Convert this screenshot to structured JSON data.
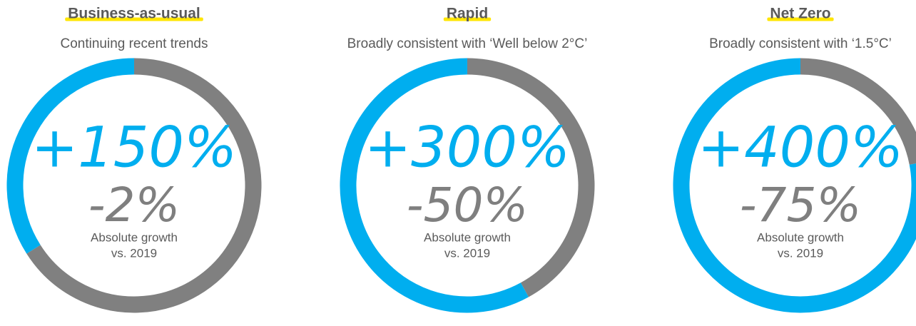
{
  "chart_data": [
    {
      "type": "pie",
      "title": "Business-as-usual",
      "subtitle": "Continuing recent trends",
      "values": [
        66,
        34
      ],
      "colors": [
        "#808080",
        "#00aeef"
      ],
      "annotations": [
        "+150%",
        "-2%",
        "Absolute growth",
        "vs. 2019"
      ]
    },
    {
      "type": "pie",
      "title": "Rapid",
      "subtitle": "Broadly consistent with ‘Well below 2°C’",
      "values": [
        42,
        58
      ],
      "colors": [
        "#808080",
        "#00aeef"
      ],
      "annotations": [
        "+300%",
        "-50%",
        "Absolute growth",
        "vs. 2019"
      ]
    },
    {
      "type": "pie",
      "title": "Net Zero",
      "subtitle": "Broadly consistent with ‘1.5°C’",
      "values": [
        22,
        78
      ],
      "colors": [
        "#808080",
        "#00aeef"
      ],
      "annotations": [
        "+400%",
        "-75%",
        "Absolute growth",
        "vs. 2019"
      ]
    }
  ]
}
